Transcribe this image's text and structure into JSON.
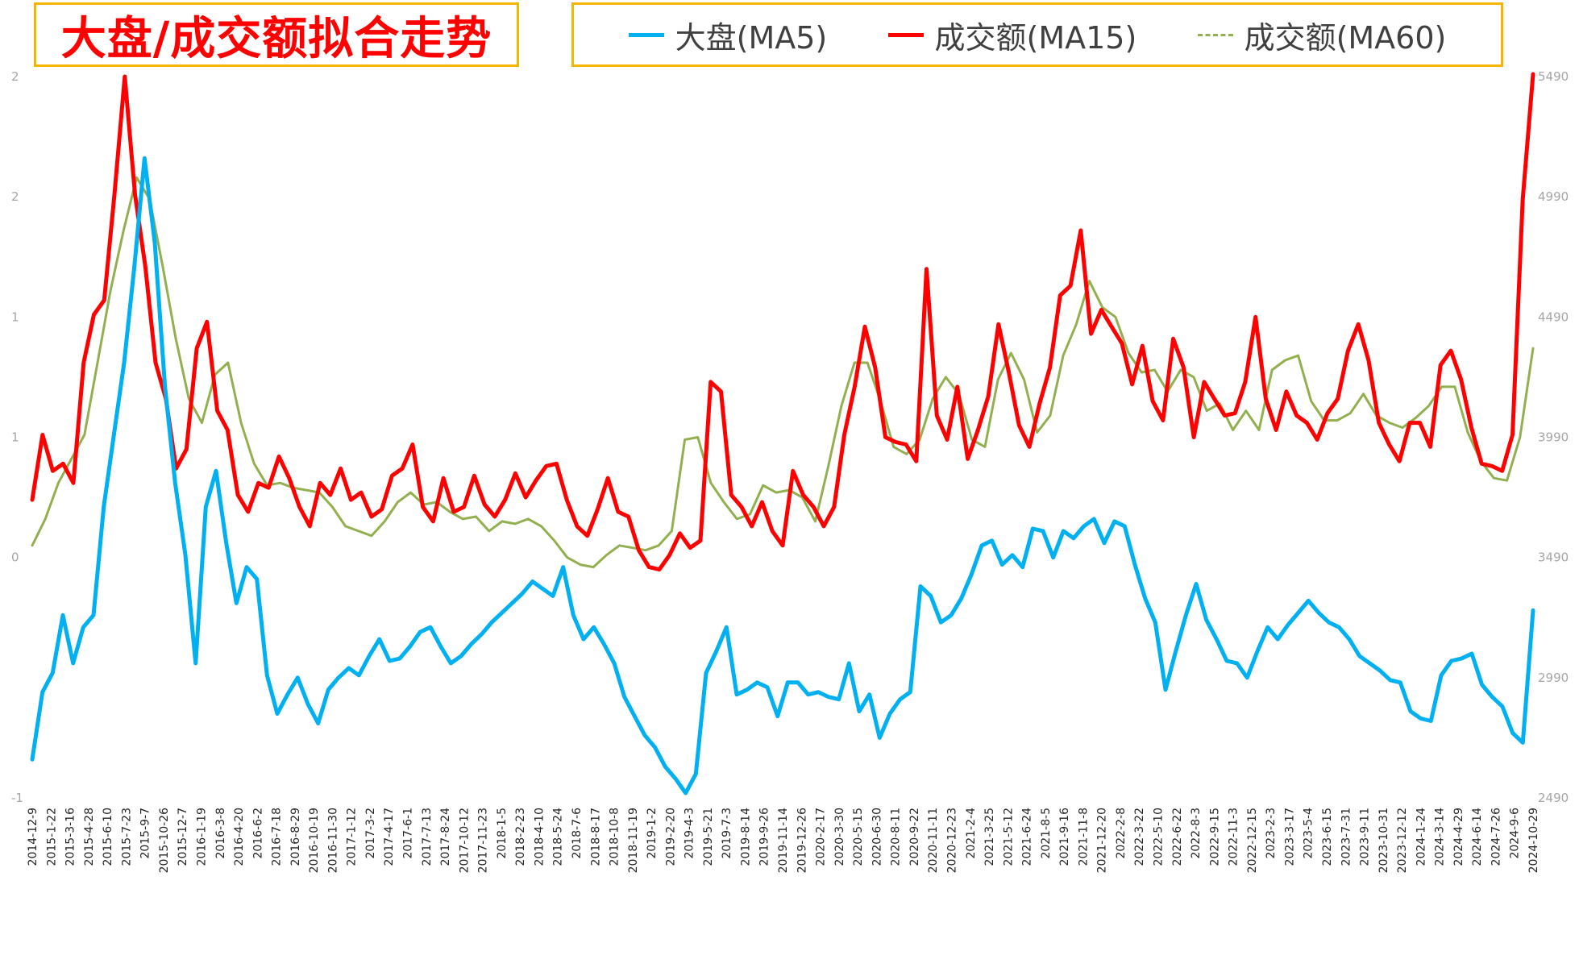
{
  "title": "大盘/成交额拟合走势",
  "legend": [
    {
      "label": "大盘(MA5)",
      "color": "#00b0f0",
      "style": "solid"
    },
    {
      "label": "成交额(MA15)",
      "color": "#ff0000",
      "style": "solid"
    },
    {
      "label": "成交额(MA60)",
      "color": "#92b050",
      "style": "dashed"
    }
  ],
  "colors": {
    "border": "#f5b400",
    "title": "#ff0000",
    "axis_text": "#a6a6a6",
    "date_text": "#262626"
  },
  "chart_data": {
    "type": "line",
    "left_axis": {
      "ticks": [
        "-1",
        "0",
        "1",
        "1",
        "2",
        "2"
      ],
      "values": [
        -1,
        0,
        0.5,
        1,
        1.5,
        2
      ]
    },
    "right_axis": {
      "ticks": [
        "2490",
        "2990",
        "3490",
        "3990",
        "4490",
        "4990",
        "5490"
      ],
      "values": [
        2490,
        2990,
        3490,
        3990,
        4490,
        4990,
        5490
      ],
      "ylim": [
        2490,
        5490
      ]
    },
    "x_ticks": [
      "2014-12-9",
      "2015-1-22",
      "2015-3-16",
      "2015-4-28",
      "2015-6-10",
      "2015-7-23",
      "2015-9-7",
      "2015-10-26",
      "2015-12-7",
      "2016-1-19",
      "2016-3-8",
      "2016-4-20",
      "2016-6-2",
      "2016-7-18",
      "2016-8-29",
      "2016-10-19",
      "2016-11-30",
      "2017-1-12",
      "2017-3-2",
      "2017-4-17",
      "2017-6-1",
      "2017-7-13",
      "2017-8-24",
      "2017-10-12",
      "2017-11-23",
      "2018-1-5",
      "2018-2-23",
      "2018-4-10",
      "2018-5-24",
      "2018-7-6",
      "2018-8-17",
      "2018-10-8",
      "2018-11-19",
      "2019-1-2",
      "2019-2-20",
      "2019-4-3",
      "2019-5-21",
      "2019-7-3",
      "2019-8-14",
      "2019-9-26",
      "2019-11-14",
      "2019-12-26",
      "2020-2-17",
      "2020-3-30",
      "2020-5-15",
      "2020-6-30",
      "2020-8-11",
      "2020-9-22",
      "2020-11-11",
      "2020-12-23",
      "2021-2-4",
      "2021-3-25",
      "2021-5-12",
      "2021-6-24",
      "2021-8-5",
      "2021-9-16",
      "2021-11-8",
      "2021-12-20",
      "2022-2-8",
      "2022-3-22",
      "2022-5-10",
      "2022-6-22",
      "2022-8-3",
      "2022-9-15",
      "2022-11-3",
      "2022-12-15",
      "2023-2-3",
      "2023-3-17",
      "2023-5-4",
      "2023-6-15",
      "2023-7-31",
      "2023-9-11",
      "2023-10-31",
      "2023-12-12",
      "2024-1-24",
      "2024-3-14",
      "2024-4-29",
      "2024-6-14",
      "2024-7-26",
      "2024-9-6",
      "2024-10-29"
    ],
    "series": [
      {
        "name": "大盘(MA5)",
        "axis": "right",
        "color": "#00b0f0",
        "values": [
          2650,
          2930,
          3010,
          3250,
          3050,
          3200,
          3250,
          3700,
          4000,
          4300,
          4700,
          5150,
          4800,
          4200,
          3800,
          3500,
          3050,
          3700,
          3850,
          3550,
          3300,
          3450,
          3400,
          3000,
          2840,
          2920,
          2990,
          2880,
          2800,
          2940,
          2990,
          3030,
          3000,
          3080,
          3150,
          3060,
          3070,
          3120,
          3180,
          3200,
          3120,
          3050,
          3080,
          3130,
          3170,
          3220,
          3260,
          3300,
          3340,
          3390,
          3360,
          3330,
          3450,
          3250,
          3150,
          3200,
          3130,
          3050,
          2910,
          2830,
          2750,
          2700,
          2620,
          2570,
          2510,
          2590,
          3010,
          3100,
          3200,
          2920,
          2940,
          2970,
          2950,
          2830,
          2970,
          2970,
          2920,
          2930,
          2910,
          2900,
          3050,
          2850,
          2920,
          2740,
          2840,
          2900,
          2930,
          3370,
          3330,
          3220,
          3250,
          3320,
          3420,
          3540,
          3560,
          3460,
          3500,
          3450,
          3610,
          3600,
          3490,
          3600,
          3570,
          3620,
          3650,
          3550,
          3640,
          3620,
          3460,
          3320,
          3220,
          2940,
          3100,
          3250,
          3380,
          3230,
          3150,
          3060,
          3050,
          2990,
          3100,
          3200,
          3150,
          3210,
          3260,
          3310,
          3260,
          3220,
          3200,
          3150,
          3080,
          3050,
          3020,
          2980,
          2970,
          2850,
          2820,
          2810,
          3000,
          3060,
          3070,
          3090,
          2960,
          2910,
          2870,
          2760,
          2720,
          3270
        ]
      },
      {
        "name": "成交额(MA15)",
        "axis": "right",
        "color": "#ff0000",
        "values": [
          3730,
          4000,
          3850,
          3880,
          3800,
          4300,
          4500,
          4560,
          5000,
          5490,
          5000,
          4700,
          4300,
          4150,
          3860,
          3940,
          4360,
          4470,
          4100,
          4020,
          3750,
          3680,
          3800,
          3780,
          3910,
          3820,
          3700,
          3620,
          3800,
          3750,
          3860,
          3730,
          3760,
          3660,
          3690,
          3830,
          3860,
          3960,
          3700,
          3640,
          3820,
          3680,
          3700,
          3830,
          3710,
          3660,
          3730,
          3840,
          3740,
          3810,
          3870,
          3880,
          3730,
          3620,
          3580,
          3690,
          3820,
          3680,
          3660,
          3520,
          3450,
          3440,
          3500,
          3590,
          3530,
          3560,
          4220,
          4180,
          3750,
          3700,
          3620,
          3720,
          3600,
          3540,
          3850,
          3750,
          3700,
          3620,
          3700,
          4000,
          4200,
          4450,
          4280,
          3990,
          3970,
          3960,
          3890,
          4690,
          4080,
          3980,
          4200,
          3900,
          4020,
          4160,
          4460,
          4260,
          4040,
          3950,
          4130,
          4280,
          4580,
          4620,
          4850,
          4420,
          4520,
          4450,
          4380,
          4210,
          4370,
          4140,
          4060,
          4400,
          4280,
          3990,
          4220,
          4150,
          4080,
          4090,
          4220,
          4490,
          4150,
          4020,
          4180,
          4080,
          4050,
          3980,
          4090,
          4150,
          4350,
          4460,
          4310,
          4050,
          3960,
          3890,
          4050,
          4050,
          3950,
          4290,
          4350,
          4230,
          4030,
          3880,
          3870,
          3850,
          4000,
          4980,
          5500
        ]
      },
      {
        "name": "成交额(MA60)",
        "axis": "right",
        "color": "#92b050",
        "values": [
          3540,
          3650,
          3800,
          3900,
          4000,
          4300,
          4600,
          4850,
          5070,
          4980,
          4700,
          4400,
          4150,
          4050,
          4250,
          4300,
          4050,
          3880,
          3790,
          3800,
          3780,
          3770,
          3760,
          3700,
          3620,
          3600,
          3580,
          3640,
          3720,
          3760,
          3710,
          3720,
          3680,
          3650,
          3660,
          3600,
          3640,
          3630,
          3650,
          3620,
          3560,
          3490,
          3460,
          3450,
          3500,
          3540,
          3530,
          3520,
          3540,
          3600,
          3980,
          3990,
          3800,
          3720,
          3650,
          3670,
          3790,
          3760,
          3770,
          3740,
          3640,
          3870,
          4120,
          4300,
          4300,
          4140,
          3950,
          3920,
          3980,
          4150,
          4240,
          4170,
          3980,
          3950,
          4230,
          4340,
          4230,
          4010,
          4080,
          4330,
          4460,
          4640,
          4530,
          4490,
          4340,
          4260,
          4270,
          4180,
          4270,
          4240,
          4100,
          4130,
          4020,
          4100,
          4020,
          4270,
          4310,
          4330,
          4140,
          4060,
          4060,
          4090,
          4170,
          4080,
          4050,
          4030,
          4070,
          4120,
          4200,
          4200,
          4010,
          3890,
          3820,
          3810,
          3990,
          4360
        ]
      }
    ]
  }
}
